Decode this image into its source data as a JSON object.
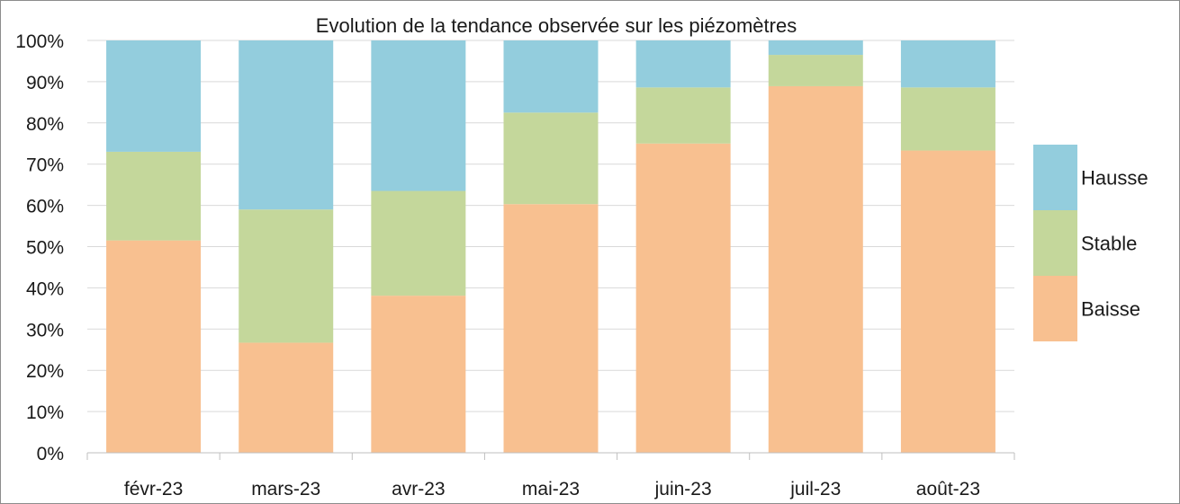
{
  "chart_data": {
    "type": "bar",
    "stacked": true,
    "percent": true,
    "title": "Evolution de la tendance observée sur les piézomètres",
    "categories": [
      "févr-23",
      "mars-23",
      "avr-23",
      "mai-23",
      "juin-23",
      "juil-23",
      "août-23"
    ],
    "series": [
      {
        "name": "Baisse",
        "color": "#f8c090",
        "values": [
          51.5,
          26.7,
          38.1,
          60.3,
          75.0,
          88.9,
          73.3
        ]
      },
      {
        "name": "Stable",
        "color": "#c4d79b",
        "values": [
          21.5,
          32.3,
          25.4,
          22.2,
          13.6,
          7.6,
          15.3
        ]
      },
      {
        "name": "Hausse",
        "color": "#93cddd",
        "values": [
          27.0,
          41.0,
          36.5,
          17.5,
          11.4,
          3.5,
          11.4
        ]
      }
    ],
    "ylim": [
      0,
      100
    ],
    "yticks": [
      "0%",
      "10%",
      "20%",
      "30%",
      "40%",
      "50%",
      "60%",
      "70%",
      "80%",
      "90%",
      "100%"
    ],
    "grid": true,
    "legend_position": "right",
    "xlabel": "",
    "ylabel": ""
  }
}
